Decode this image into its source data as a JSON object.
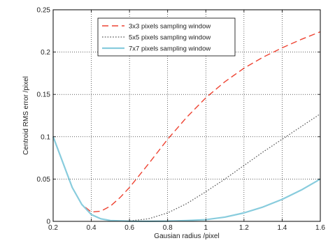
{
  "chart_data": {
    "type": "line",
    "xlabel": "Gausian radius /pixel",
    "ylabel": "Centroid RMS error /pixel",
    "xlim": [
      0.2,
      1.6
    ],
    "ylim": [
      0,
      0.25
    ],
    "xticks": [
      0.2,
      0.4,
      0.6,
      0.8,
      1,
      1.2,
      1.4,
      1.6
    ],
    "xtick_labels": [
      "0.2",
      "0.4",
      "0.6",
      "0.8",
      "1",
      "1.2",
      "1.4",
      "1.6"
    ],
    "yticks": [
      0,
      0.05,
      0.1,
      0.15,
      0.2,
      0.25
    ],
    "ytick_labels": [
      "0",
      "0.05",
      "0.1",
      "0.15",
      "0.2",
      "0.25"
    ],
    "grid": true,
    "legend_position": "top-center",
    "series": [
      {
        "name": "3x3 pixels sampling window",
        "color": "#ee4433",
        "style": "dashed",
        "x": [
          0.2,
          0.3,
          0.35,
          0.4,
          0.45,
          0.5,
          0.55,
          0.6,
          0.7,
          0.8,
          0.9,
          1.0,
          1.1,
          1.2,
          1.3,
          1.4,
          1.5,
          1.6
        ],
        "y": [
          0.1,
          0.04,
          0.02,
          0.011,
          0.012,
          0.018,
          0.028,
          0.04,
          0.068,
          0.097,
          0.123,
          0.146,
          0.165,
          0.181,
          0.194,
          0.205,
          0.215,
          0.224
        ]
      },
      {
        "name": "5x5 pixels sampling window",
        "color": "#555555",
        "style": "dotted",
        "x": [
          0.2,
          0.3,
          0.35,
          0.4,
          0.45,
          0.5,
          0.55,
          0.6,
          0.7,
          0.8,
          0.9,
          1.0,
          1.1,
          1.2,
          1.3,
          1.4,
          1.5,
          1.6
        ],
        "y": [
          0.1,
          0.04,
          0.02,
          0.008,
          0.003,
          0.001,
          0.0005,
          0.0006,
          0.003,
          0.01,
          0.021,
          0.035,
          0.05,
          0.066,
          0.082,
          0.097,
          0.112,
          0.127
        ]
      },
      {
        "name": "7x7 pixels sampling window",
        "color": "#88ccdd",
        "style": "solid",
        "x": [
          0.2,
          0.3,
          0.35,
          0.4,
          0.45,
          0.5,
          0.6,
          0.7,
          0.8,
          0.9,
          1.0,
          1.1,
          1.2,
          1.3,
          1.4,
          1.5,
          1.6
        ],
        "y": [
          0.1,
          0.04,
          0.02,
          0.008,
          0.003,
          0.001,
          0.0002,
          0.0001,
          0.0003,
          0.001,
          0.002,
          0.005,
          0.01,
          0.017,
          0.026,
          0.037,
          0.05
        ]
      }
    ]
  }
}
